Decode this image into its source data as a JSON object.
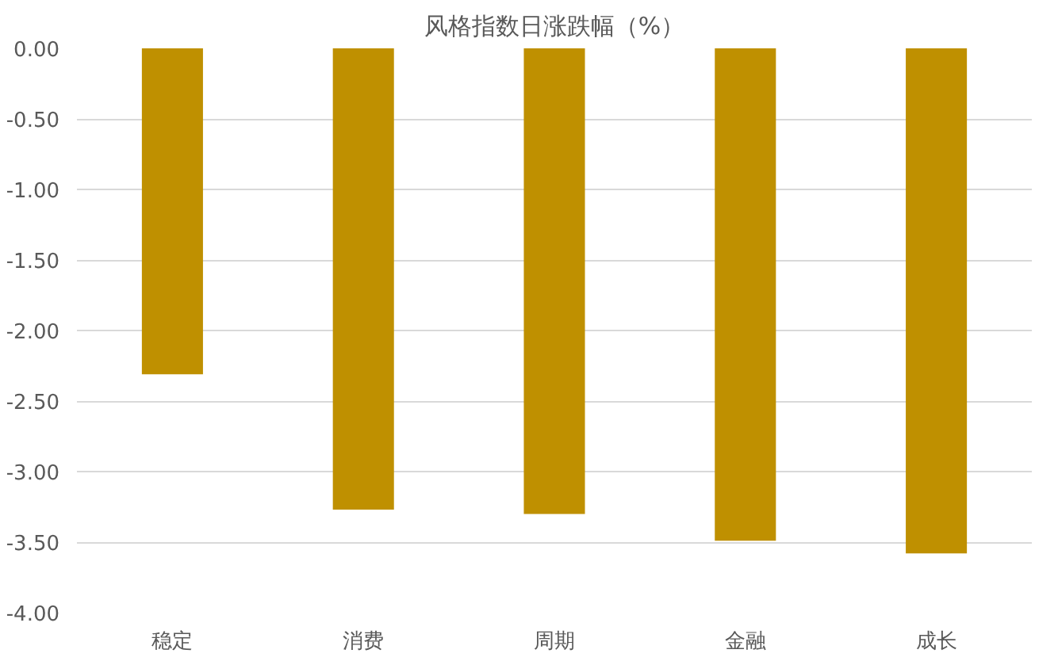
{
  "chart_data": {
    "type": "bar",
    "title": "风格指数日涨跌幅（%）",
    "categories": [
      "稳定",
      "消费",
      "周期",
      "金融",
      "成长"
    ],
    "values": [
      -2.31,
      -3.27,
      -3.3,
      -3.49,
      -3.58
    ],
    "color": "#bf9000",
    "ylim": [
      -4.0,
      0.0
    ],
    "yticks": [
      {
        "value": 0,
        "label": "0.00"
      },
      {
        "value": -0.5,
        "label": "-0.50"
      },
      {
        "value": -1.0,
        "label": "-1.00"
      },
      {
        "value": -1.5,
        "label": "-1.50"
      },
      {
        "value": -2.0,
        "label": "-2.00"
      },
      {
        "value": -2.5,
        "label": "-2.50"
      },
      {
        "value": -3.0,
        "label": "-3.00"
      },
      {
        "value": -3.5,
        "label": "-3.50"
      },
      {
        "value": -4.0,
        "label": "-4.00"
      }
    ],
    "grid": "y"
  }
}
